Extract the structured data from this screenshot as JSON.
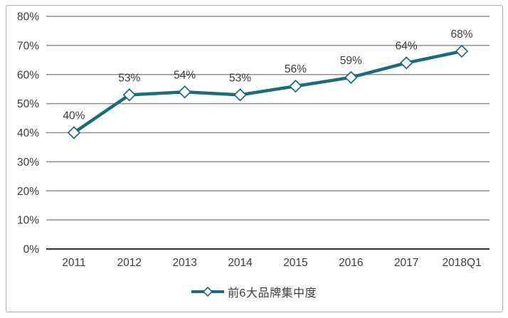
{
  "chart_data": {
    "type": "line",
    "categories": [
      "2011",
      "2012",
      "2013",
      "2014",
      "2015",
      "2016",
      "2017",
      "2018Q1"
    ],
    "series": [
      {
        "name": "前6大品牌集中度",
        "values": [
          40,
          53,
          54,
          53,
          56,
          59,
          64,
          68
        ]
      }
    ],
    "data_labels": [
      "40%",
      "53%",
      "54%",
      "53%",
      "56%",
      "59%",
      "64%",
      "68%"
    ],
    "title": "",
    "xlabel": "",
    "ylabel": "",
    "ylim": [
      0,
      80
    ],
    "y_tick_step": 10,
    "y_tick_labels": [
      "0%",
      "10%",
      "20%",
      "30%",
      "40%",
      "50%",
      "60%",
      "70%",
      "80%"
    ],
    "grid": true,
    "legend_position": "bottom",
    "marker_shape": "diamond",
    "colors": {
      "line": "#1a6b7d",
      "marker_fill": "#ffffff",
      "gridline": "#8f8f8f",
      "axis_line": "#3a3a3a",
      "text": "#3d3d3d",
      "background": "#ffffff",
      "border": "#adadad"
    }
  },
  "legend": {
    "label": "前6大品牌集中度"
  }
}
